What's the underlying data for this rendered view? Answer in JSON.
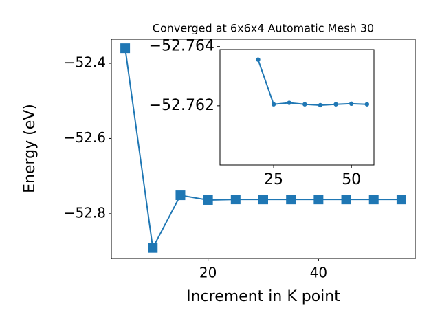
{
  "chart_data": [
    {
      "type": "line",
      "title": "Converged at 6x6x4 Automatic Mesh 30",
      "xlabel": "Increment in K point",
      "ylabel": "Energy (eV)",
      "x": [
        5,
        10,
        15,
        20,
        25,
        30,
        35,
        40,
        45,
        50,
        55
      ],
      "series": [
        {
          "color": "#1f77b4",
          "marker": "square",
          "values": [
            -52.36,
            -52.891,
            -52.751,
            -52.7636,
            -52.762,
            -52.7621,
            -52.7621,
            -52.7621,
            -52.7621,
            -52.7621,
            -52.7621
          ]
        }
      ],
      "xlim": [
        2.5,
        57.5
      ],
      "ylim": [
        -52.919,
        -52.336
      ],
      "xticks": [
        20,
        40
      ],
      "yticks": [
        {
          "value": -52.4,
          "label": "−52.4"
        },
        {
          "value": -52.6,
          "label": "−52.6"
        },
        {
          "value": -52.8,
          "label": "−52.8"
        }
      ]
    },
    {
      "type": "line",
      "x": [
        20,
        25,
        30,
        35,
        40,
        45,
        50,
        55
      ],
      "series": [
        {
          "color": "#1f77b4",
          "marker": "circle",
          "values": [
            -52.76356,
            -52.76205,
            -52.7621,
            -52.76205,
            -52.76202,
            -52.76205,
            -52.76207,
            -52.76205
          ]
        }
      ],
      "xlim": [
        7.75,
        57.25
      ],
      "ylim": [
        -52.76,
        -52.7639
      ],
      "xticks": [
        25,
        50
      ],
      "yticks": [
        {
          "value": -52.764,
          "label": "−52.764"
        },
        {
          "value": -52.762,
          "label": "−52.762"
        }
      ]
    }
  ]
}
